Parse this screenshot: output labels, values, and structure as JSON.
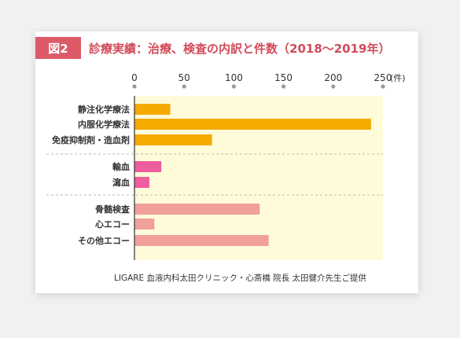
{
  "figure": {
    "badge": "図2",
    "title": "診療実績：治療、検査の内訳と件数（2018〜2019年）",
    "credit": "LIGARE 血液内科太田クリニック・心斎橋 院長 太田健介先生ご提供"
  },
  "chart_data": {
    "type": "bar",
    "orientation": "horizontal",
    "unit_label": "(件)",
    "xlim": [
      0,
      250
    ],
    "ticks": [
      0,
      50,
      100,
      150,
      200,
      250
    ],
    "grid": false,
    "plot_background": "#fffbd9",
    "groups": [
      {
        "color": "#f5aa00",
        "bars": [
          {
            "label": "静注化学療法",
            "value": 36
          },
          {
            "label": "内服化学療法",
            "value": 238
          },
          {
            "label": "免疫抑制剤・造血剤",
            "value": 78
          }
        ]
      },
      {
        "color": "#ee5d9c",
        "bars": [
          {
            "label": "輸血",
            "value": 27
          },
          {
            "label": "瀉血",
            "value": 15
          }
        ]
      },
      {
        "color": "#f0a099",
        "bars": [
          {
            "label": "骨髄検査",
            "value": 126
          },
          {
            "label": "心エコー",
            "value": 20
          },
          {
            "label": "その他エコー",
            "value": 135
          }
        ]
      }
    ]
  }
}
